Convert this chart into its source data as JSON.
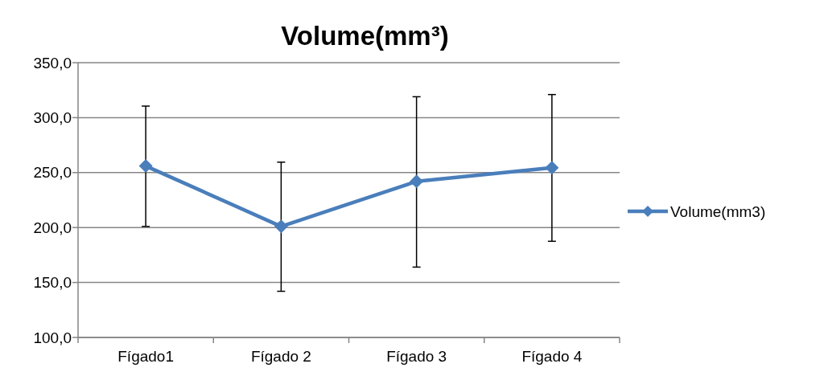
{
  "chart_data": {
    "type": "line",
    "title": "Volume(mm³)",
    "categories": [
      "Fígado1",
      "Fígado 2",
      "Fígado 3",
      "Fígado 4"
    ],
    "series": [
      {
        "name": "Volume(mm3)",
        "color": "#4a7ebb",
        "values": [
          256,
          201,
          242,
          254.5
        ],
        "errors": [
          [
            201,
            310.5
          ],
          [
            142,
            259.5
          ],
          [
            164,
            319
          ],
          [
            187.5,
            321
          ]
        ]
      }
    ],
    "ylim": [
      100,
      350
    ],
    "yticks": [
      {
        "value": 100,
        "label": "100,0"
      },
      {
        "value": 150,
        "label": "150,0"
      },
      {
        "value": 200,
        "label": "200,0"
      },
      {
        "value": 250,
        "label": "250,0"
      },
      {
        "value": 300,
        "label": "300,0"
      },
      {
        "value": 350,
        "label": "350,0"
      }
    ],
    "grid": "y",
    "legend": "right",
    "marker": "diamond",
    "line_style": "solid"
  }
}
